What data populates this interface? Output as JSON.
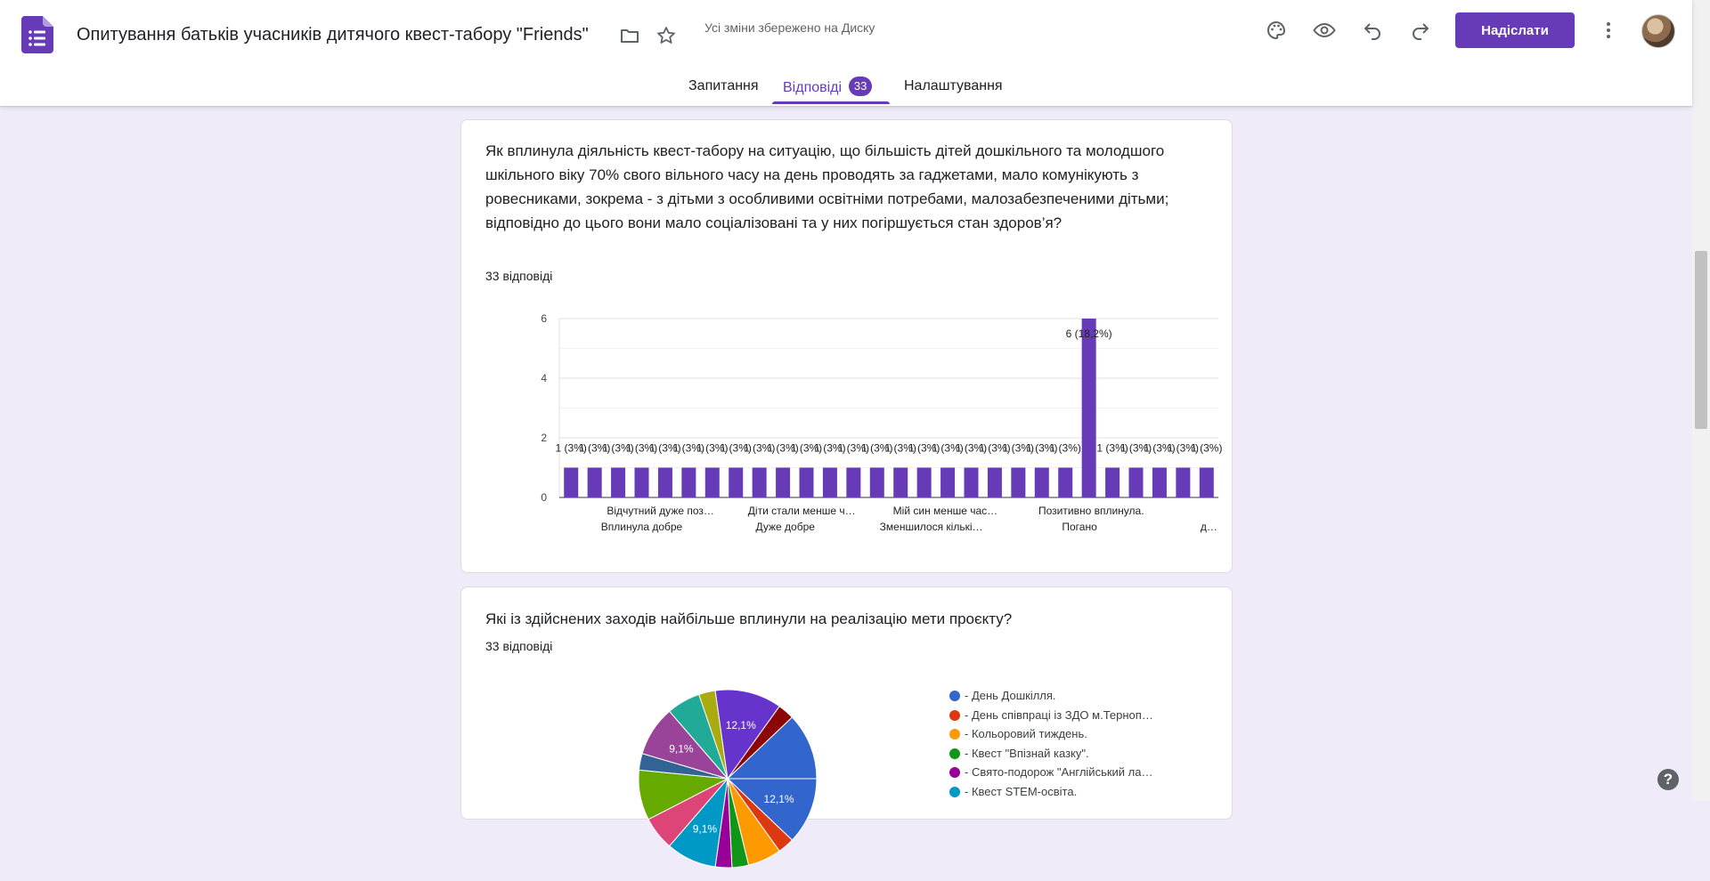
{
  "header": {
    "title": "Опитування батьків учасників дитячого квест-табору \"Friends\"",
    "save_status": "Усі зміни збережено на Диску",
    "send_label": "Надіслати",
    "icons": [
      "palette-icon",
      "eye-icon",
      "undo-icon",
      "redo-icon",
      "more-vert-icon"
    ]
  },
  "tabs": {
    "questions": "Запитання",
    "responses": "Відповіді",
    "responses_count": "33",
    "settings": "Налаштування",
    "active": "responses"
  },
  "accent_color": "#673ab7",
  "question1": {
    "title": "Як вплинула діяльність квест-табору на ситуацію, що більшість дітей дошкільного та молодшого шкільного віку 70% свого вільного часу на день проводять за гаджетами, мало комунікують з ровесниками, зокрема - з дітьми з особливими освітніми потребами, малозабезпеченими дітьми; відповідно до цього вони мало соціалізовані та у них погіршується стан здоров’я?",
    "count": "33 відповіді"
  },
  "question2": {
    "title": "Які із здійснених заходів найбільше вплинули на реалізацію мети проєкту?",
    "count": "33 відповіді",
    "legend": [
      {
        "label": "- День Дошкілля.",
        "color": "#3366cc"
      },
      {
        "label": "- День співпраці із ЗДО м.Терноп…",
        "color": "#dc3912"
      },
      {
        "label": "- Кольоровий тиждень.",
        "color": "#ff9900"
      },
      {
        "label": "- Квест \"Впізнай казку\".",
        "color": "#109618"
      },
      {
        "label": "- Свято-подорож \"Англійський ла…",
        "color": "#990099"
      },
      {
        "label": "- Квест STEM-освіта.",
        "color": "#0099c6"
      }
    ]
  },
  "help_label": "?",
  "chart_data": [
    {
      "type": "bar",
      "title": "",
      "xlabel": "",
      "ylabel": "",
      "ylim": [
        0,
        6
      ],
      "yticks": [
        "0",
        "2",
        "4",
        "6"
      ],
      "grid": true,
      "color": "#673ab7",
      "x_labels_row1": [
        "Відчутний дуже поз…",
        "Діти стали менше ч…",
        "Мій син менше час…",
        "Позитивно вплинула."
      ],
      "x_labels_row2": [
        "Вплинула добре",
        "Дуже добре",
        "Зменшилося кількі…",
        "Погано",
        "д…"
      ],
      "values": [
        1,
        1,
        1,
        1,
        1,
        1,
        1,
        1,
        1,
        1,
        1,
        1,
        1,
        1,
        1,
        1,
        1,
        1,
        1,
        1,
        1,
        1,
        6,
        1,
        1,
        1,
        1,
        1
      ],
      "data_labels": [
        "1 (3%)",
        "1 (3%)",
        "1 (3%)",
        "1 (3%)",
        "1 (3%)",
        "1 (3%)",
        "1 (3%)",
        "1 (3%)",
        "1 (3%)",
        "1 (3%)",
        "1 (3%)",
        "1 (3%)",
        "1 (3%)",
        "1 (3%)",
        "1 (3%)",
        "1 (3%)",
        "1 (3%)",
        "1 (3%)",
        "1 (3%)",
        "1 (3%)",
        "1 (3%)",
        "1 (3%)",
        "6 (18,2%)",
        "1 (3%)",
        "1 (3%)",
        "1 (3%)",
        "1 (3%)",
        "1 (3%)"
      ]
    },
    {
      "type": "pie",
      "title": "",
      "slice_labels": [
        "12,1%",
        "9,1%",
        "9,1%"
      ],
      "slices": [
        {
          "value": 12.1,
          "color": "#3366cc",
          "label": "12,1%"
        },
        {
          "value": 3.0,
          "color": "#dc3912"
        },
        {
          "value": 6.1,
          "color": "#ff9900"
        },
        {
          "value": 3.0,
          "color": "#109618"
        },
        {
          "value": 3.0,
          "color": "#990099"
        },
        {
          "value": 9.1,
          "color": "#0099c6",
          "label": "9,1%"
        },
        {
          "value": 6.1,
          "color": "#dd4477"
        },
        {
          "value": 9.1,
          "color": "#66aa00"
        },
        {
          "value": 3.0,
          "color": "#316395"
        },
        {
          "value": 9.1,
          "color": "#994499",
          "label": "9,1%"
        },
        {
          "value": 6.1,
          "color": "#22aa99"
        },
        {
          "value": 3.0,
          "color": "#aaaa11"
        },
        {
          "value": 12.1,
          "color": "#6633cc",
          "label": "12,1%"
        },
        {
          "value": 3.0,
          "color": "#8b0707"
        },
        {
          "value": 12.1,
          "color": "#3366cc"
        }
      ]
    }
  ]
}
